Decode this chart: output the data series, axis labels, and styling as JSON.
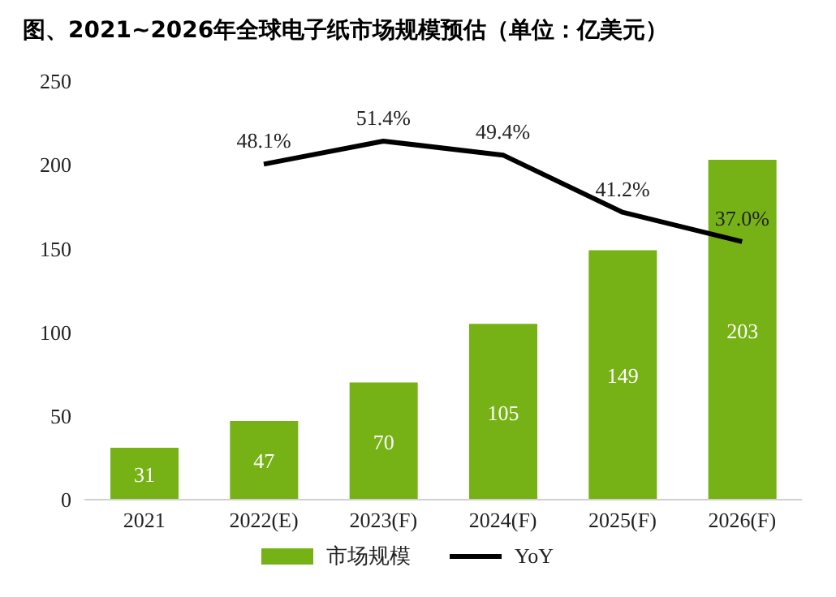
{
  "chart_data": {
    "type": "bar",
    "title": "图、2021~2026年全球电子纸市场规模预估（单位：亿美元）",
    "categories": [
      "2021",
      "2022(E)",
      "2023(F)",
      "2024(F)",
      "2025(F)",
      "2026(F)"
    ],
    "series": [
      {
        "name": "市场规模",
        "color": "#76b215",
        "values": [
          31,
          47,
          70,
          105,
          149,
          203
        ],
        "value_labels": [
          "31",
          "47",
          "70",
          "105",
          "149",
          "203"
        ]
      },
      {
        "name": "YoY",
        "type": "line",
        "axis": "y2",
        "color": "#000000",
        "values": [
          null,
          48.1,
          51.4,
          49.4,
          41.2,
          37.0
        ],
        "value_labels": [
          null,
          "48.1%",
          "51.4%",
          "49.4%",
          "41.2%",
          "37.0%"
        ]
      }
    ],
    "ylim": [
      0,
      250
    ],
    "yticks": [
      0,
      50,
      100,
      150,
      200,
      250
    ],
    "tick_labels": "xy",
    "grid": false,
    "legend": "bottom",
    "marker": "none",
    "line_style": "solid"
  }
}
